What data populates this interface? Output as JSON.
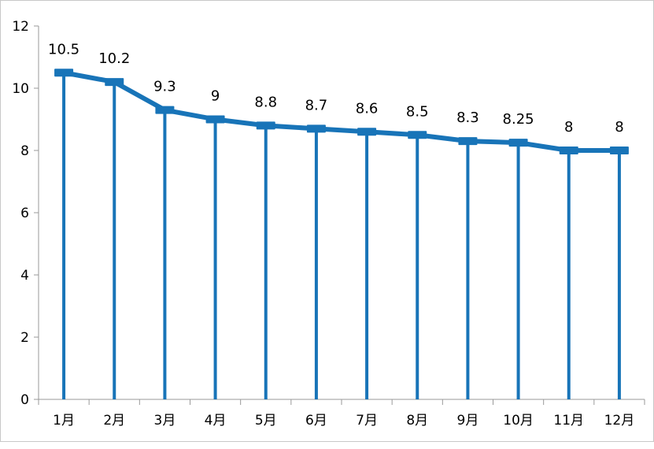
{
  "chart_data": {
    "type": "line",
    "categories": [
      "1月",
      "2月",
      "3月",
      "4月",
      "5月",
      "6月",
      "7月",
      "8月",
      "9月",
      "10月",
      "11月",
      "12月"
    ],
    "series": [
      {
        "values": [
          10.5,
          10.2,
          9.3,
          9,
          8.8,
          8.7,
          8.6,
          8.5,
          8.3,
          8.25,
          8,
          8
        ],
        "data_labels": [
          "10.5",
          "10.2",
          "9.3",
          "9",
          "8.8",
          "8.7",
          "8.6",
          "8.5",
          "8.3",
          "8.25",
          "8",
          "8"
        ],
        "drop_lines": true
      }
    ],
    "title": "",
    "xlabel": "",
    "ylabel": "",
    "ylim": [
      0,
      12
    ],
    "yticks": [
      "0",
      "2",
      "4",
      "6",
      "8",
      "10",
      "12"
    ],
    "grid": false,
    "legend": "none",
    "colors": {
      "series": "#1874b8",
      "axis": "#9a9a9a",
      "text": "#000000"
    }
  }
}
